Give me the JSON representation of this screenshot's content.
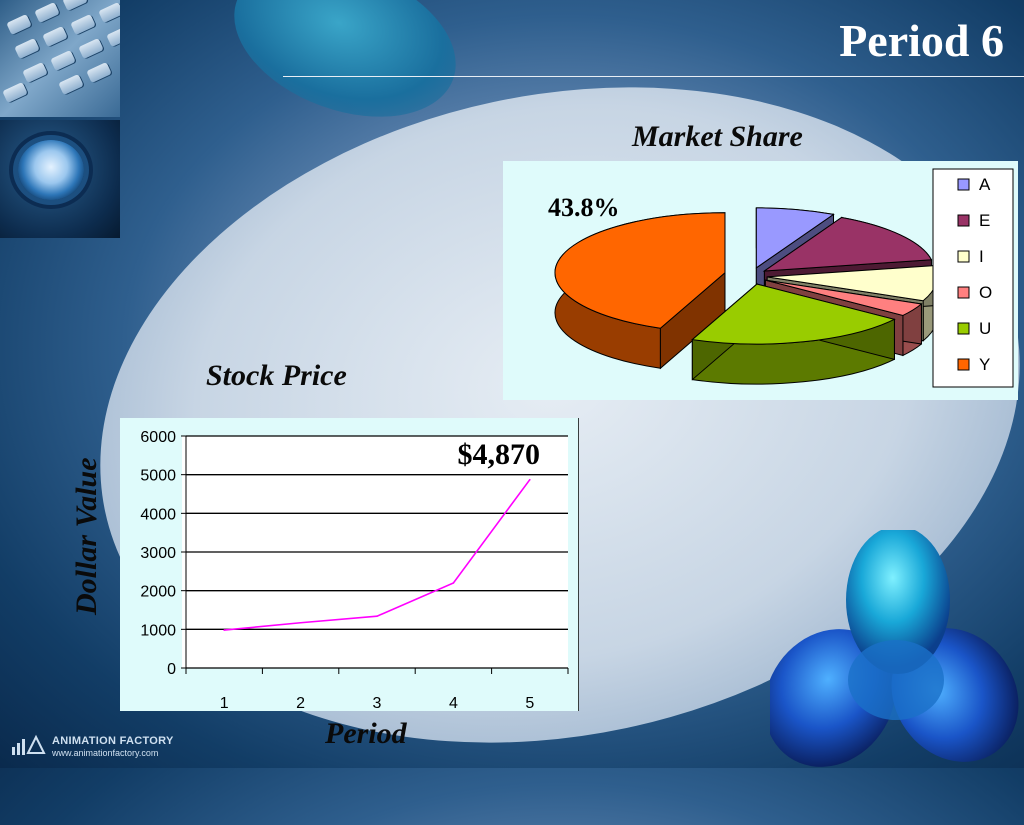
{
  "slide": {
    "title": "Period 6"
  },
  "branding": {
    "name": "ANIMATION FACTORY",
    "url": "www.animationfactory.com"
  },
  "chart_data": [
    {
      "type": "pie",
      "title": "Market Share",
      "categories": [
        "A",
        "E",
        "I",
        "O",
        "U",
        "Y"
      ],
      "values": [
        7.5,
        14.5,
        9.5,
        3.5,
        21.2,
        43.8
      ],
      "colors": [
        "#9999ff",
        "#993366",
        "#ffffcc",
        "#ff8080",
        "#99cc00",
        "#ff6600"
      ],
      "data_label": "43.8%",
      "legend": "right",
      "style": "3d-exploded"
    },
    {
      "type": "line",
      "title": "Stock Price",
      "xlabel": "Period",
      "ylabel": "Dollar Value",
      "x": [
        1,
        2,
        3,
        4,
        5
      ],
      "series": [
        {
          "values": [
            980,
            1170,
            1340,
            2200,
            4870
          ],
          "color": "#ff00ff"
        }
      ],
      "ylim": [
        0,
        6000
      ],
      "yticks": [
        0,
        1000,
        2000,
        3000,
        4000,
        5000,
        6000
      ],
      "grid": true,
      "annotation": "$4,870"
    }
  ]
}
